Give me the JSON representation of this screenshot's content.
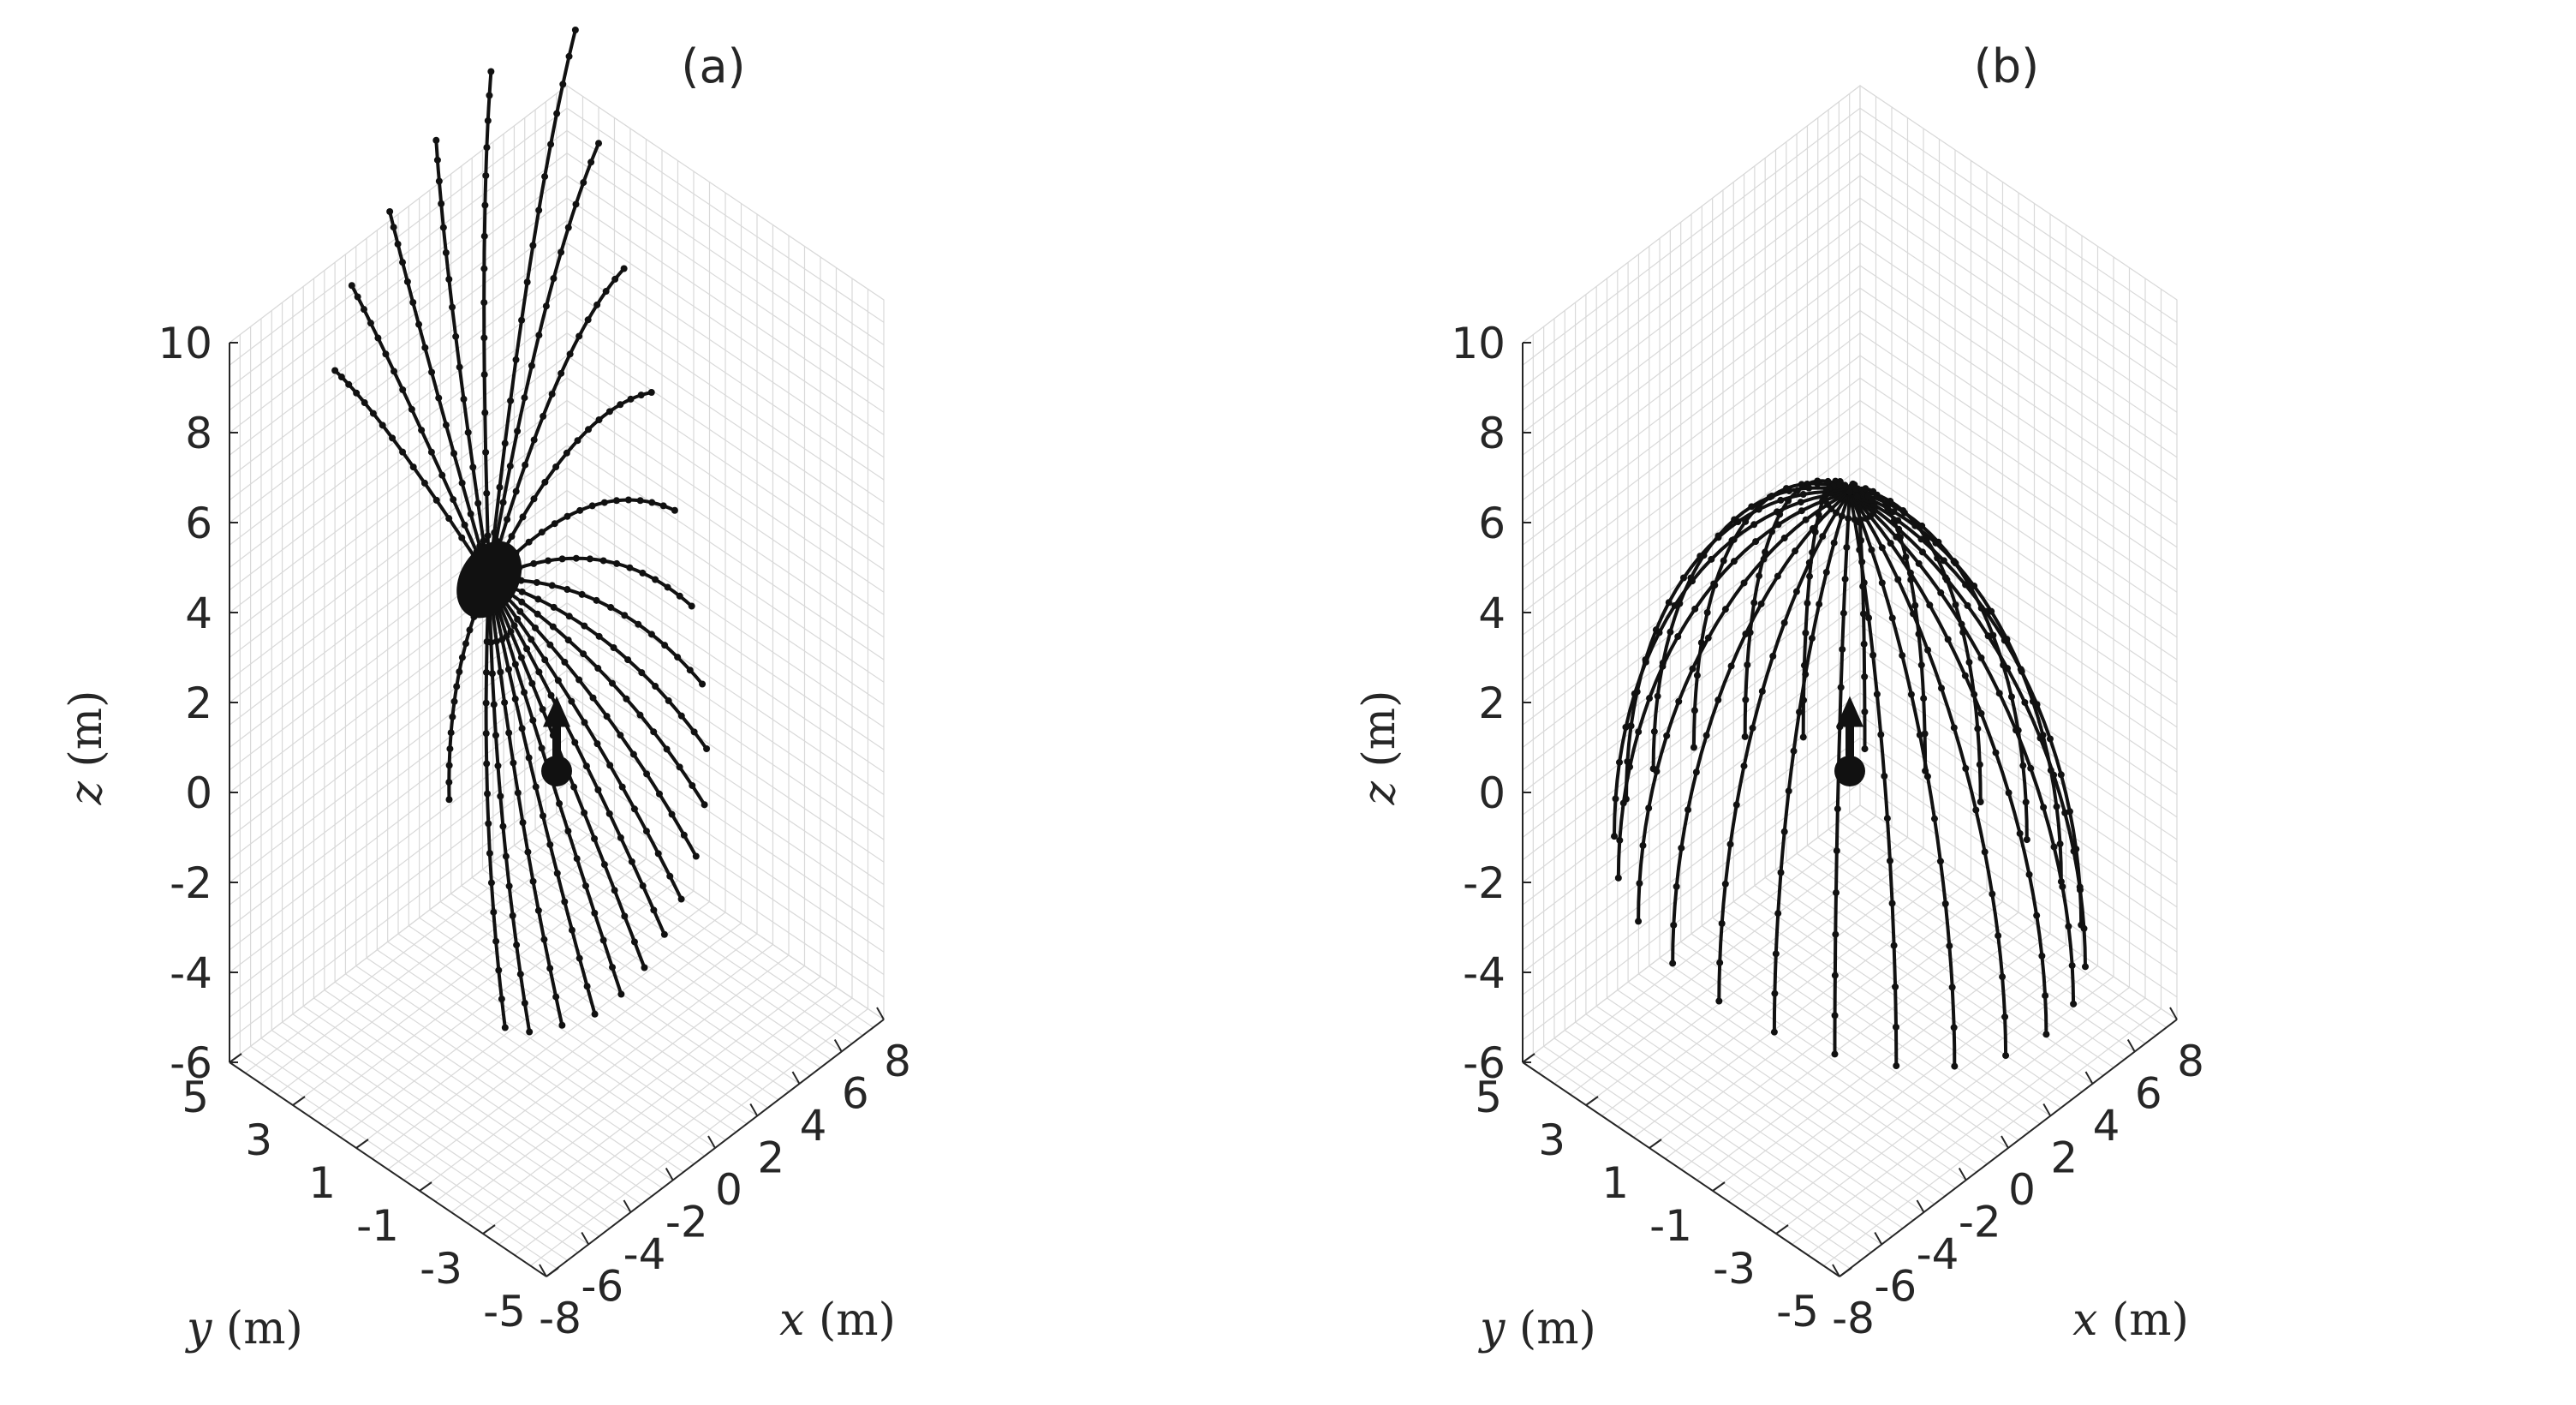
{
  "chart_data": [
    {
      "type": "line3d",
      "panel": "(a)",
      "title": "(a)",
      "xlabel": {
        "var": "x",
        "unit": " (m)"
      },
      "ylabel": {
        "var": "y",
        "unit": " (m)"
      },
      "zlabel": {
        "var": "z",
        "unit": " (m)"
      },
      "xlim": [
        -8,
        8
      ],
      "ylim": [
        -5,
        5
      ],
      "zlim": [
        -6,
        10
      ],
      "xticks": [
        "-8",
        "-6",
        "-4",
        "-2",
        "0",
        "2",
        "4",
        "6",
        "8"
      ],
      "yticks": [
        "5",
        "3",
        "1",
        "-1",
        "-3",
        "-5"
      ],
      "zticks": [
        "10",
        "8",
        "6",
        "4",
        "2",
        "0",
        "-2",
        "-4",
        "-6"
      ],
      "grid": true,
      "marker": {
        "shape": "dot-with-arrow",
        "position": [
          0,
          0,
          0
        ],
        "direction": "+z"
      },
      "converge_point": [
        -3.2,
        0,
        5.4
      ],
      "series_description": "family of dotted field-line trajectories fanning out from a point near (-3.2, 0, 5.4)",
      "series": [
        {
          "start": [
            -3.2,
            0,
            5.4
          ],
          "end": [
            -6.2,
            -2.5,
            -2.3
          ]
        },
        {
          "start": [
            -3.2,
            0,
            5.4
          ],
          "end": [
            -5.8,
            -3.0,
            -2.3
          ]
        },
        {
          "start": [
            -3.2,
            0,
            5.4
          ],
          "end": [
            -5.0,
            -3.5,
            -2.2
          ]
        },
        {
          "start": [
            -3.2,
            0,
            5.4
          ],
          "end": [
            -4.2,
            -4.0,
            -2.0
          ]
        },
        {
          "start": [
            -3.2,
            0,
            5.4
          ],
          "end": [
            -3.4,
            -4.3,
            -1.7
          ]
        },
        {
          "start": [
            -3.2,
            0,
            5.4
          ],
          "end": [
            -2.6,
            -4.5,
            -1.3
          ]
        },
        {
          "start": [
            -3.2,
            0,
            5.4
          ],
          "end": [
            -1.8,
            -4.6,
            -0.8
          ]
        },
        {
          "start": [
            -3.2,
            0,
            5.4
          ],
          "end": [
            -1.0,
            -4.6,
            -0.3
          ]
        },
        {
          "start": [
            -3.2,
            0,
            5.4
          ],
          "end": [
            0.0,
            -4.4,
            0.2
          ]
        },
        {
          "start": [
            -3.2,
            0,
            5.4
          ],
          "end": [
            1.0,
            -4.0,
            0.8
          ]
        },
        {
          "start": [
            -3.2,
            0,
            5.4
          ],
          "end": [
            2.0,
            -3.4,
            1.4
          ]
        },
        {
          "start": [
            -3.2,
            0,
            5.4
          ],
          "end": [
            3.0,
            -2.6,
            2.1
          ]
        },
        {
          "start": [
            -3.2,
            0,
            5.4
          ],
          "end": [
            4.0,
            -1.6,
            3.0
          ]
        },
        {
          "start": [
            -3.2,
            0,
            5.4
          ],
          "end": [
            5.0,
            -0.4,
            4.2
          ]
        },
        {
          "start": [
            -3.2,
            0,
            5.4
          ],
          "end": [
            6.0,
            1.0,
            5.8
          ]
        },
        {
          "start": [
            -3.2,
            0,
            5.4
          ],
          "end": [
            6.8,
            2.4,
            7.6
          ]
        },
        {
          "start": [
            -3.2,
            0,
            5.4
          ],
          "end": [
            7.4,
            3.6,
            9.6
          ]
        },
        {
          "start": [
            -3.2,
            0,
            5.4
          ],
          "end": [
            7.8,
            4.6,
            11.5
          ]
        },
        {
          "start": [
            -3.2,
            0,
            5.4
          ],
          "end": [
            4.4,
            5.0,
            11.6
          ]
        },
        {
          "start": [
            -3.2,
            0,
            5.4
          ],
          "end": [
            1.8,
            5.0,
            11.0
          ]
        },
        {
          "start": [
            -3.2,
            0,
            5.4
          ],
          "end": [
            -0.4,
            5.0,
            10.2
          ]
        },
        {
          "start": [
            -3.2,
            0,
            5.4
          ],
          "end": [
            -2.2,
            5.0,
            9.2
          ]
        },
        {
          "start": [
            -3.2,
            0,
            5.4
          ],
          "end": [
            -3.6,
            4.6,
            8.0
          ]
        },
        {
          "start": [
            -3.2,
            0,
            5.4
          ],
          "end": [
            -6.6,
            -1.0,
            2.2
          ]
        }
      ]
    },
    {
      "type": "line3d",
      "panel": "(b)",
      "title": "(b)",
      "xlabel": {
        "var": "x",
        "unit": " (m)"
      },
      "ylabel": {
        "var": "y",
        "unit": " (m)"
      },
      "zlabel": {
        "var": "z",
        "unit": " (m)"
      },
      "xlim": [
        -8,
        8
      ],
      "ylim": [
        -5,
        5
      ],
      "zlim": [
        -6,
        10
      ],
      "xticks": [
        "-8",
        "-6",
        "-4",
        "-2",
        "0",
        "2",
        "4",
        "6",
        "8"
      ],
      "yticks": [
        "5",
        "3",
        "1",
        "-1",
        "-3",
        "-5"
      ],
      "zticks": [
        "10",
        "8",
        "6",
        "4",
        "2",
        "0",
        "-2",
        "-4",
        "-6"
      ],
      "grid": true,
      "marker": {
        "shape": "dot-with-arrow",
        "position": [
          0,
          0,
          0
        ],
        "direction": "+z"
      },
      "series_description": "dotted meridian trajectories forming a hemispherical dome",
      "dome": {
        "center": [
          0,
          0,
          0
        ],
        "radius": 6.2
      },
      "series": [
        {
          "azimuth_deg": 0
        },
        {
          "azimuth_deg": 15
        },
        {
          "azimuth_deg": 30
        },
        {
          "azimuth_deg": 45
        },
        {
          "azimuth_deg": 60
        },
        {
          "azimuth_deg": 75
        },
        {
          "azimuth_deg": 90
        },
        {
          "azimuth_deg": 105
        },
        {
          "azimuth_deg": 120
        },
        {
          "azimuth_deg": 135
        },
        {
          "azimuth_deg": 150
        },
        {
          "azimuth_deg": 165
        },
        {
          "azimuth_deg": 180
        },
        {
          "azimuth_deg": 195
        },
        {
          "azimuth_deg": 210
        },
        {
          "azimuth_deg": 225
        },
        {
          "azimuth_deg": 240
        },
        {
          "azimuth_deg": 255
        },
        {
          "azimuth_deg": 270
        },
        {
          "azimuth_deg": 285
        },
        {
          "azimuth_deg": 300
        },
        {
          "azimuth_deg": 315
        },
        {
          "azimuth_deg": 330
        },
        {
          "azimuth_deg": 345
        }
      ]
    }
  ]
}
